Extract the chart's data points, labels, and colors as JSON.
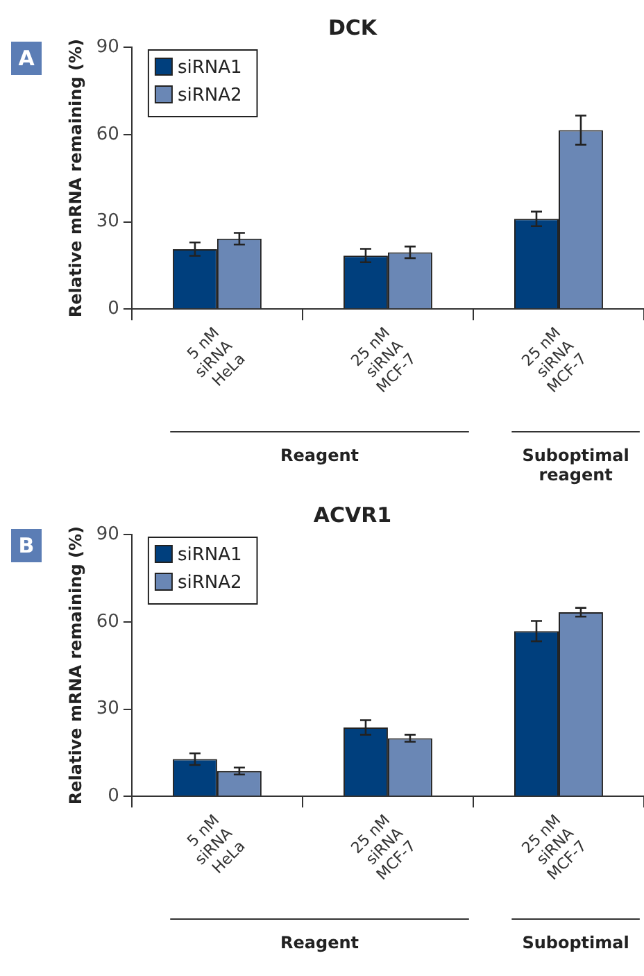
{
  "chart_data": [
    {
      "type": "bar",
      "title": "DCK",
      "ylabel": "Relative mRNA remaining (%)",
      "categories": [
        "5 nM\nsiRNA\nHeLa",
        "25 nM\nsiRNA\nMCF-7",
        "25 nM\nsiRNA\nMCF-7"
      ],
      "series": [
        {
          "name": "siRNA1",
          "color": "#003f7d",
          "values": [
            20.6,
            18.4,
            31
          ],
          "errors": [
            2.3,
            2.3,
            2.5
          ]
        },
        {
          "name": "siRNA2",
          "color": "#6a87b5",
          "values": [
            24.2,
            19.5,
            61.5
          ],
          "errors": [
            2,
            2,
            5
          ]
        }
      ],
      "ylim": [
        0,
        90
      ],
      "yticks": [
        0,
        30,
        60,
        90
      ],
      "grid": false,
      "legend": "top left",
      "annotations": [
        "A",
        "Reagent",
        "Suboptimal\nreagent"
      ]
    },
    {
      "type": "bar",
      "title": "ACVR1",
      "ylabel": "Relative mRNA remaining (%)",
      "categories": [
        "5 nM\nsiRNA\nHeLa",
        "25 nM\nsiRNA\nMCF-7",
        "25 nM\nsiRNA\nMCF-7"
      ],
      "series": [
        {
          "name": "siRNA1",
          "color": "#003f7d",
          "values": [
            12.8,
            23.7,
            56.8
          ],
          "errors": [
            2,
            2.5,
            3.5
          ]
        },
        {
          "name": "siRNA2",
          "color": "#6a87b5",
          "values": [
            8.7,
            20,
            63.3
          ],
          "errors": [
            1.2,
            1.2,
            1.5
          ]
        }
      ],
      "ylim": [
        0,
        90
      ],
      "yticks": [
        0,
        30,
        60,
        90
      ],
      "grid": false,
      "legend": "top left",
      "annotations": [
        "B",
        "Reagent",
        "Suboptimal"
      ]
    }
  ]
}
